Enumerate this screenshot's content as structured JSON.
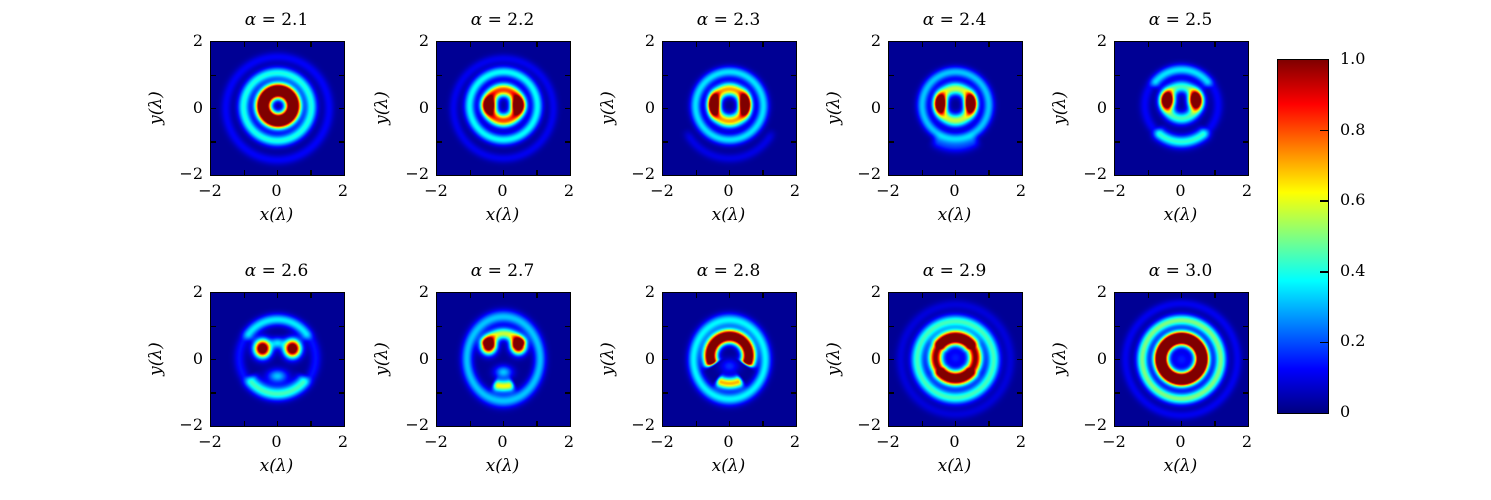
{
  "figure": {
    "background": "#ffffff",
    "xlabel": "x(λ)",
    "ylabel": "y(λ)",
    "x_ticks": [
      "−2",
      "0",
      "2"
    ],
    "y_ticks": [
      "2",
      "0",
      "−2"
    ],
    "x_range": [
      -2,
      2
    ],
    "y_range": [
      -2,
      2
    ]
  },
  "colorbar": {
    "min": 0,
    "max": 1,
    "colormap": "jet",
    "ticks": [
      {
        "label": "1.0",
        "value": 1.0
      },
      {
        "label": "0.8",
        "value": 0.8
      },
      {
        "label": "0.6",
        "value": 0.6
      },
      {
        "label": "0.4",
        "value": 0.4
      },
      {
        "label": "0.2",
        "value": 0.2
      },
      {
        "label": "0",
        "value": 0.0
      }
    ],
    "gradient_stops": [
      "#000080",
      "#0000ff",
      "#0080ff",
      "#00ffff",
      "#80ff80",
      "#ffff00",
      "#ff8000",
      "#ff0000",
      "#800000"
    ]
  },
  "chart_data": {
    "type": "heatmap",
    "colormap": "jet",
    "value_range": [
      0,
      1
    ],
    "x_range": [
      -2,
      2
    ],
    "y_range": [
      -2,
      2
    ],
    "grid": false,
    "background_level": 0.02,
    "panels": [
      {
        "title": "α = 2.1",
        "alpha": 2.1,
        "features": [
          {
            "type": "arc",
            "cx": 0.02,
            "cy": 0.08,
            "r": 0.45,
            "w": 0.21,
            "amp": 1.6
          },
          {
            "type": "arc",
            "cx": 0,
            "cy": 0.05,
            "r": 1.02,
            "w": 0.17,
            "amp": 0.38
          },
          {
            "type": "arc",
            "cx": 0,
            "cy": 0,
            "r": 1.55,
            "w": 0.15,
            "amp": 0.1
          }
        ]
      },
      {
        "title": "α = 2.2",
        "alpha": 2.2,
        "features": [
          {
            "type": "arc",
            "cx": 0,
            "cy": 0.1,
            "r": 0.46,
            "w": 0.19,
            "amp": 0.8
          },
          {
            "type": "blob",
            "cx": -0.43,
            "cy": 0.1,
            "sx": 0.2,
            "sy": 0.24,
            "amp": 0.9
          },
          {
            "type": "blob",
            "cx": 0.43,
            "cy": 0.1,
            "sx": 0.2,
            "sy": 0.24,
            "amp": 0.9
          },
          {
            "type": "arc",
            "cx": 0,
            "cy": 0.08,
            "r": 1.02,
            "w": 0.16,
            "amp": 0.36
          },
          {
            "type": "arc",
            "cx": 0,
            "cy": 0,
            "r": 1.5,
            "w": 0.14,
            "amp": 0.09
          }
        ]
      },
      {
        "title": "α = 2.3",
        "alpha": 2.3,
        "features": [
          {
            "type": "arc",
            "cx": 0,
            "cy": 0.1,
            "r": 0.48,
            "w": 0.19,
            "amp": 0.7
          },
          {
            "type": "blob",
            "cx": -0.46,
            "cy": 0.12,
            "sx": 0.15,
            "sy": 0.28,
            "amp": 1.2
          },
          {
            "type": "blob",
            "cx": 0.46,
            "cy": 0.12,
            "sx": 0.15,
            "sy": 0.28,
            "amp": 1.2
          },
          {
            "type": "arc",
            "cx": 0,
            "cy": 0.08,
            "r": 1.02,
            "w": 0.16,
            "amp": 0.33
          },
          {
            "type": "arc",
            "cx": 0,
            "cy": -0.05,
            "r": 1.45,
            "w": 0.14,
            "amp": 0.08,
            "a1": 200,
            "a2": 340
          }
        ]
      },
      {
        "title": "α = 2.4",
        "alpha": 2.4,
        "features": [
          {
            "type": "arc",
            "cx": 0,
            "cy": 0.12,
            "r": 0.48,
            "w": 0.19,
            "amp": 0.55
          },
          {
            "type": "blob",
            "cx": -0.45,
            "cy": 0.15,
            "sx": 0.16,
            "sy": 0.26,
            "amp": 1.25
          },
          {
            "type": "blob",
            "cx": 0.45,
            "cy": 0.15,
            "sx": 0.16,
            "sy": 0.26,
            "amp": 1.25
          },
          {
            "type": "arc",
            "cx": 0,
            "cy": 0.1,
            "r": 1.0,
            "w": 0.16,
            "amp": 0.3
          },
          {
            "type": "arc",
            "cx": 0,
            "cy": 0,
            "r": 1.15,
            "w": 0.18,
            "amp": 0.15,
            "a1": 228,
            "a2": 312
          }
        ]
      },
      {
        "title": "α = 2.5",
        "alpha": 2.5,
        "features": [
          {
            "type": "arc",
            "cx": 0,
            "cy": 0.18,
            "r": 0.48,
            "w": 0.18,
            "amp": 0.42
          },
          {
            "type": "blob",
            "cx": -0.42,
            "cy": 0.25,
            "sx": 0.19,
            "sy": 0.25,
            "amp": 1.3
          },
          {
            "type": "blob",
            "cx": 0.42,
            "cy": 0.25,
            "sx": 0.19,
            "sy": 0.25,
            "amp": 1.3
          },
          {
            "type": "arc",
            "cx": 0,
            "cy": 0.02,
            "r": 1.02,
            "w": 0.19,
            "amp": 0.3,
            "a1": 215,
            "a2": 325
          },
          {
            "type": "arc",
            "cx": 0,
            "cy": 0.15,
            "r": 1.0,
            "w": 0.16,
            "amp": 0.24,
            "a1": 25,
            "a2": 155
          },
          {
            "type": "arc",
            "cx": 0,
            "cy": 0.1,
            "r": 1.1,
            "w": 0.15,
            "amp": 0.1
          }
        ]
      },
      {
        "title": "α = 2.6",
        "alpha": 2.6,
        "features": [
          {
            "type": "blob",
            "cx": -0.45,
            "cy": 0.33,
            "sx": 0.23,
            "sy": 0.25,
            "amp": 1.3
          },
          {
            "type": "blob",
            "cx": 0.45,
            "cy": 0.33,
            "sx": 0.23,
            "sy": 0.25,
            "amp": 1.3
          },
          {
            "type": "blob",
            "cx": 0,
            "cy": 0.5,
            "sx": 0.2,
            "sy": 0.16,
            "amp": 0.3
          },
          {
            "type": "blob",
            "cx": 0,
            "cy": -0.5,
            "sx": 0.3,
            "sy": 0.2,
            "amp": 0.3
          },
          {
            "type": "arc",
            "cx": 0,
            "cy": 0,
            "r": 1.0,
            "w": 0.2,
            "amp": 0.33,
            "a1": 205,
            "a2": 335
          },
          {
            "type": "arc",
            "cx": 0,
            "cy": 0.15,
            "r": 1.05,
            "w": 0.17,
            "amp": 0.22,
            "a1": 20,
            "a2": 160
          },
          {
            "type": "arc",
            "cx": 0,
            "cy": 0.05,
            "r": 1.15,
            "w": 0.16,
            "amp": 0.12
          }
        ]
      },
      {
        "title": "α = 2.7",
        "alpha": 2.7,
        "features": [
          {
            "type": "blob",
            "cx": -0.45,
            "cy": 0.42,
            "sx": 0.21,
            "sy": 0.23,
            "amp": 1.3
          },
          {
            "type": "blob",
            "cx": 0.45,
            "cy": 0.42,
            "sx": 0.21,
            "sy": 0.23,
            "amp": 1.3
          },
          {
            "type": "arc",
            "cx": 0,
            "cy": 0.22,
            "r": 0.56,
            "w": 0.17,
            "amp": 0.55,
            "a1": 15,
            "a2": 165
          },
          {
            "type": "blob",
            "cx": 0,
            "cy": -0.38,
            "sx": 0.26,
            "sy": 0.19,
            "amp": 0.3
          },
          {
            "type": "arc",
            "cx": 0,
            "cy": 0.05,
            "r": 0.85,
            "w": 0.17,
            "amp": 0.6,
            "a1": 243,
            "a2": 297
          },
          {
            "type": "arc",
            "cx": 0,
            "cy": 0.02,
            "r": 1.1,
            "w": 0.17,
            "amp": 0.3,
            "asp": 1.15
          }
        ]
      },
      {
        "title": "α = 2.8",
        "alpha": 2.8,
        "features": [
          {
            "type": "arc",
            "cx": 0,
            "cy": 0.12,
            "r": 0.58,
            "w": 0.19,
            "amp": 1.35,
            "a1": -35,
            "a2": 215
          },
          {
            "type": "arc",
            "cx": 0,
            "cy": 0,
            "r": 0.72,
            "w": 0.17,
            "amp": 0.68,
            "a1": 233,
            "a2": 307
          },
          {
            "type": "blob",
            "cx": 0,
            "cy": -0.2,
            "sx": 0.28,
            "sy": 0.22,
            "amp": 0.15
          },
          {
            "type": "arc",
            "cx": 0,
            "cy": 0,
            "r": 1.08,
            "w": 0.17,
            "amp": 0.35,
            "asp": 1.1
          }
        ]
      },
      {
        "title": "α = 2.9",
        "alpha": 2.9,
        "features": [
          {
            "type": "arc",
            "cx": 0,
            "cy": 0.05,
            "r": 0.6,
            "w": 0.2,
            "amp": 1.0
          },
          {
            "type": "arc",
            "cx": 0,
            "cy": 0.05,
            "r": 0.62,
            "w": 0.2,
            "amp": 0.4,
            "a1": 25,
            "a2": 155
          },
          {
            "type": "arc",
            "cx": 0,
            "cy": 0,
            "r": 0.62,
            "w": 0.2,
            "amp": 0.35,
            "a1": 205,
            "a2": 335
          },
          {
            "type": "blob",
            "cx": 0,
            "cy": 0.05,
            "sx": 0.28,
            "sy": 0.28,
            "amp": 0.13
          },
          {
            "type": "arc",
            "cx": 0,
            "cy": 0,
            "r": 1.15,
            "w": 0.19,
            "amp": 0.42
          },
          {
            "type": "arc",
            "cx": 0,
            "cy": 0,
            "r": 1.65,
            "w": 0.15,
            "amp": 0.07
          }
        ]
      },
      {
        "title": "α = 3.0",
        "alpha": 3.0,
        "features": [
          {
            "type": "arc",
            "cx": 0,
            "cy": 0.02,
            "r": 0.62,
            "w": 0.19,
            "amp": 1.7
          },
          {
            "type": "blob",
            "cx": 0,
            "cy": 0,
            "sx": 0.3,
            "sy": 0.3,
            "amp": 0.13
          },
          {
            "type": "arc",
            "cx": 0,
            "cy": 0,
            "r": 1.18,
            "w": 0.17,
            "amp": 0.48
          },
          {
            "type": "arc",
            "cx": 0,
            "cy": 0,
            "r": 1.68,
            "w": 0.14,
            "amp": 0.09
          }
        ]
      }
    ]
  }
}
